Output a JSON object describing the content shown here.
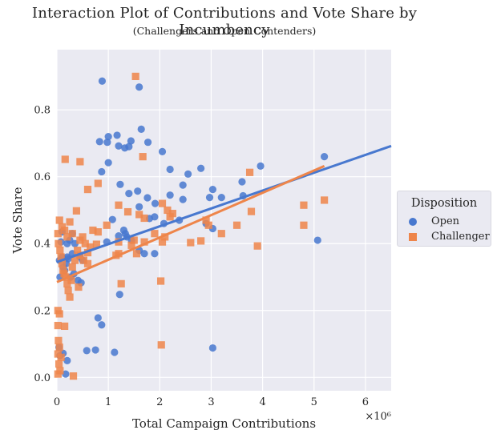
{
  "chart_data": {
    "type": "scatter",
    "title": "Interaction Plot of Contributions and Vote Share by Incumbency",
    "subtitle": "(Challengers and Open Contenders)",
    "xlabel": "Total Campaign Contributions",
    "ylabel": "Vote Share",
    "x_offset_label": "×10⁶",
    "xlim": [
      0,
      6.5
    ],
    "ylim": [
      -0.04,
      0.98
    ],
    "xticks": [
      0,
      1,
      2,
      3,
      4,
      5,
      6
    ],
    "yticks": [
      0.0,
      0.2,
      0.4,
      0.6,
      0.8
    ],
    "grid": true,
    "legend": {
      "title": "Disposition",
      "position": "right",
      "entries": [
        {
          "label": "Open",
          "marker": "circle",
          "color": "#4878cf"
        },
        {
          "label": "Challenger",
          "marker": "square",
          "color": "#ee854a"
        }
      ]
    },
    "series": [
      {
        "name": "Open",
        "marker": "circle",
        "color": "#4878cf",
        "fit": {
          "x0": 0,
          "y0": 0.345,
          "x1": 6.5,
          "y1": 0.692
        },
        "points": [
          [
            0.88,
            0.886
          ],
          [
            1.6,
            0.868
          ],
          [
            1.17,
            0.724
          ],
          [
            1.0,
            0.72
          ],
          [
            1.64,
            0.742
          ],
          [
            0.83,
            0.705
          ],
          [
            0.98,
            0.703
          ],
          [
            1.44,
            0.707
          ],
          [
            1.2,
            0.692
          ],
          [
            1.32,
            0.686
          ],
          [
            1.4,
            0.69
          ],
          [
            1.77,
            0.703
          ],
          [
            2.05,
            0.675
          ],
          [
            1.0,
            0.642
          ],
          [
            0.87,
            0.615
          ],
          [
            2.2,
            0.622
          ],
          [
            2.8,
            0.625
          ],
          [
            2.55,
            0.608
          ],
          [
            5.2,
            0.66
          ],
          [
            3.96,
            0.632
          ],
          [
            1.23,
            0.577
          ],
          [
            1.76,
            0.537
          ],
          [
            1.57,
            0.557
          ],
          [
            1.4,
            0.55
          ],
          [
            2.45,
            0.575
          ],
          [
            2.2,
            0.545
          ],
          [
            2.97,
            0.538
          ],
          [
            3.03,
            0.562
          ],
          [
            3.2,
            0.538
          ],
          [
            3.6,
            0.585
          ],
          [
            3.62,
            0.543
          ],
          [
            2.45,
            0.532
          ],
          [
            1.91,
            0.52
          ],
          [
            1.6,
            0.51
          ],
          [
            1.2,
            0.423
          ],
          [
            1.33,
            0.43
          ],
          [
            1.3,
            0.44
          ],
          [
            1.8,
            0.475
          ],
          [
            1.9,
            0.48
          ],
          [
            2.08,
            0.46
          ],
          [
            2.38,
            0.47
          ],
          [
            2.9,
            0.46
          ],
          [
            3.03,
            0.445
          ],
          [
            1.08,
            0.472
          ],
          [
            0.97,
            0.405
          ],
          [
            1.36,
            0.42
          ],
          [
            1.45,
            0.41
          ],
          [
            1.7,
            0.37
          ],
          [
            1.9,
            0.37
          ],
          [
            1.6,
            0.38
          ],
          [
            0.08,
            0.405
          ],
          [
            0.1,
            0.435
          ],
          [
            0.2,
            0.4
          ],
          [
            0.3,
            0.43
          ],
          [
            0.25,
            0.41
          ],
          [
            0.5,
            0.35
          ],
          [
            0.45,
            0.36
          ],
          [
            0.33,
            0.31
          ],
          [
            0.41,
            0.29
          ],
          [
            0.47,
            0.283
          ],
          [
            0.27,
            0.3
          ],
          [
            0.1,
            0.36
          ],
          [
            0.05,
            0.35
          ],
          [
            0.12,
            0.33
          ],
          [
            0.15,
            0.32
          ],
          [
            0.18,
            0.34
          ],
          [
            0.06,
            0.3
          ],
          [
            0.2,
            0.36
          ],
          [
            0.22,
            0.355
          ],
          [
            0.3,
            0.37
          ],
          [
            0.35,
            0.4
          ],
          [
            5.07,
            0.41
          ],
          [
            1.22,
            0.248
          ],
          [
            0.8,
            0.178
          ],
          [
            0.87,
            0.157
          ],
          [
            0.12,
            0.072
          ],
          [
            0.2,
            0.05
          ],
          [
            0.58,
            0.08
          ],
          [
            0.75,
            0.082
          ],
          [
            1.12,
            0.075
          ],
          [
            3.03,
            0.088
          ],
          [
            0.17,
            0.01
          ],
          [
            0.04,
            0.09
          ],
          [
            0.06,
            0.065
          ]
        ]
      },
      {
        "name": "Challenger",
        "marker": "square",
        "color": "#ee854a",
        "fit": {
          "x0": 0,
          "y0": 0.285,
          "x1": 5.2,
          "y1": 0.632
        },
        "points": [
          [
            1.53,
            0.9
          ],
          [
            1.67,
            0.66
          ],
          [
            0.16,
            0.652
          ],
          [
            0.45,
            0.645
          ],
          [
            3.75,
            0.613
          ],
          [
            0.6,
            0.562
          ],
          [
            0.8,
            0.58
          ],
          [
            2.05,
            0.52
          ],
          [
            2.15,
            0.5
          ],
          [
            2.25,
            0.49
          ],
          [
            1.2,
            0.515
          ],
          [
            1.38,
            0.495
          ],
          [
            1.6,
            0.487
          ],
          [
            1.7,
            0.476
          ],
          [
            2.2,
            0.48
          ],
          [
            2.9,
            0.47
          ],
          [
            2.95,
            0.455
          ],
          [
            3.5,
            0.455
          ],
          [
            3.78,
            0.496
          ],
          [
            4.8,
            0.515
          ],
          [
            4.8,
            0.455
          ],
          [
            5.2,
            0.53
          ],
          [
            3.9,
            0.393
          ],
          [
            3.2,
            0.43
          ],
          [
            2.8,
            0.408
          ],
          [
            2.6,
            0.403
          ],
          [
            2.1,
            0.42
          ],
          [
            2.05,
            0.405
          ],
          [
            1.9,
            0.43
          ],
          [
            1.7,
            0.405
          ],
          [
            1.5,
            0.41
          ],
          [
            1.55,
            0.37
          ],
          [
            1.45,
            0.395
          ],
          [
            1.2,
            0.405
          ],
          [
            1.15,
            0.365
          ],
          [
            1.2,
            0.37
          ],
          [
            0.97,
            0.455
          ],
          [
            0.8,
            0.435
          ],
          [
            0.7,
            0.44
          ],
          [
            0.77,
            0.398
          ],
          [
            0.65,
            0.39
          ],
          [
            0.6,
            0.373
          ],
          [
            0.6,
            0.34
          ],
          [
            0.52,
            0.35
          ],
          [
            0.45,
            0.365
          ],
          [
            0.38,
            0.498
          ],
          [
            0.3,
            0.43
          ],
          [
            0.25,
            0.465
          ],
          [
            0.2,
            0.42
          ],
          [
            0.15,
            0.44
          ],
          [
            0.1,
            0.45
          ],
          [
            0.05,
            0.47
          ],
          [
            0.02,
            0.43
          ],
          [
            0.03,
            0.4
          ],
          [
            0.06,
            0.38
          ],
          [
            0.08,
            0.36
          ],
          [
            0.1,
            0.34
          ],
          [
            0.12,
            0.32
          ],
          [
            0.14,
            0.31
          ],
          [
            0.17,
            0.3
          ],
          [
            0.2,
            0.28
          ],
          [
            0.22,
            0.26
          ],
          [
            0.25,
            0.24
          ],
          [
            0.28,
            0.29
          ],
          [
            0.3,
            0.33
          ],
          [
            0.35,
            0.35
          ],
          [
            0.4,
            0.38
          ],
          [
            0.45,
            0.41
          ],
          [
            0.5,
            0.42
          ],
          [
            0.55,
            0.4
          ],
          [
            1.25,
            0.28
          ],
          [
            0.42,
            0.27
          ],
          [
            2.02,
            0.288
          ],
          [
            0.02,
            0.2
          ],
          [
            0.05,
            0.19
          ],
          [
            0.15,
            0.153
          ],
          [
            0.02,
            0.155
          ],
          [
            0.03,
            0.11
          ],
          [
            0.05,
            0.09
          ],
          [
            0.02,
            0.07
          ],
          [
            0.08,
            0.06
          ],
          [
            0.04,
            0.04
          ],
          [
            0.06,
            0.02
          ],
          [
            0.02,
            0.01
          ],
          [
            0.32,
            0.004
          ],
          [
            2.03,
            0.097
          ]
        ]
      }
    ]
  }
}
